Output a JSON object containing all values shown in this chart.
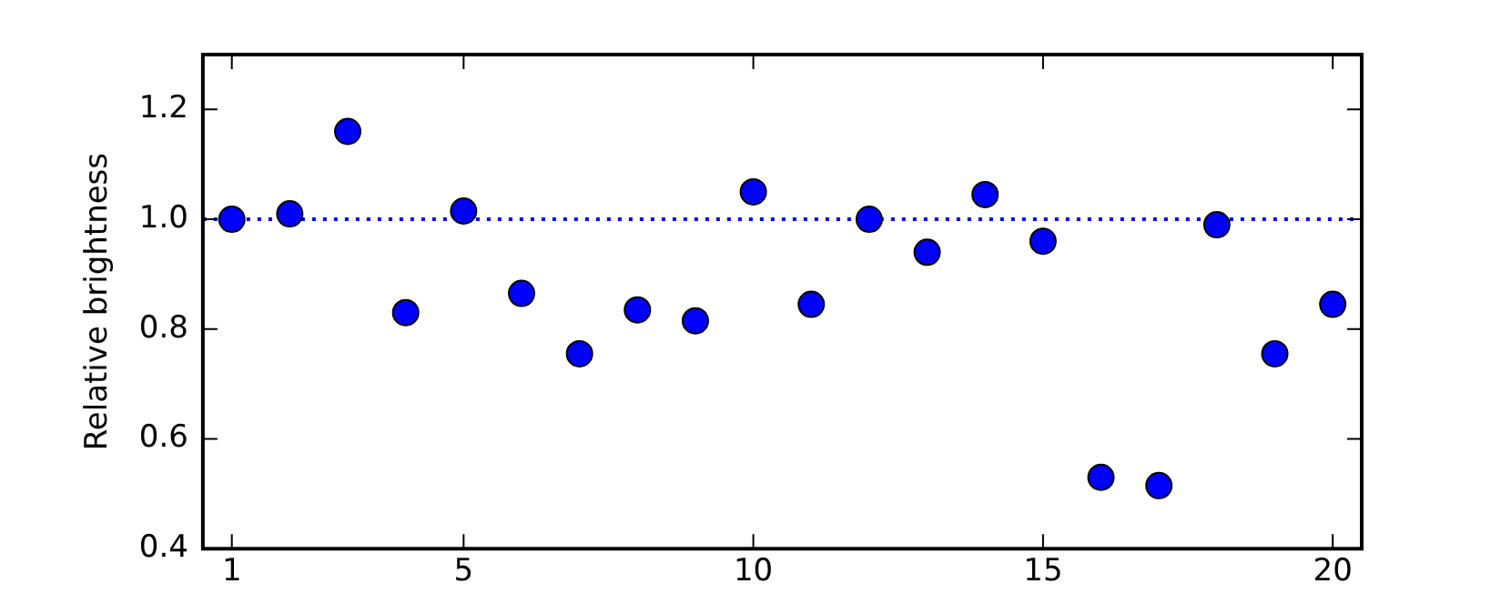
{
  "chart_data": {
    "type": "scatter",
    "ylabel": "Relative brightness",
    "x": [
      1,
      2,
      3,
      4,
      5,
      6,
      7,
      8,
      9,
      10,
      11,
      12,
      13,
      14,
      15,
      16,
      17,
      18,
      19,
      20
    ],
    "series": [
      {
        "color": "#0000ff",
        "values": [
          1.0,
          1.01,
          1.16,
          0.83,
          1.015,
          0.865,
          0.755,
          0.835,
          0.815,
          1.05,
          0.845,
          1.0,
          0.94,
          1.045,
          0.96,
          0.53,
          0.515,
          0.99,
          0.755,
          0.845
        ]
      }
    ],
    "xlim": [
      0.5,
      20.5
    ],
    "xticks": [
      1,
      5,
      10,
      15,
      20
    ],
    "ylim": [
      0.4,
      1.3
    ],
    "yticks": [
      0.4,
      0.6,
      0.8,
      {
        "value": 1,
        "label": "1.0"
      },
      1.2
    ],
    "ref_lines": [
      {
        "axis": "y",
        "value": 1.0,
        "color": "#0000ff",
        "line_style": "dotted"
      }
    ],
    "marker": "circle",
    "grid": false,
    "legend": false
  }
}
